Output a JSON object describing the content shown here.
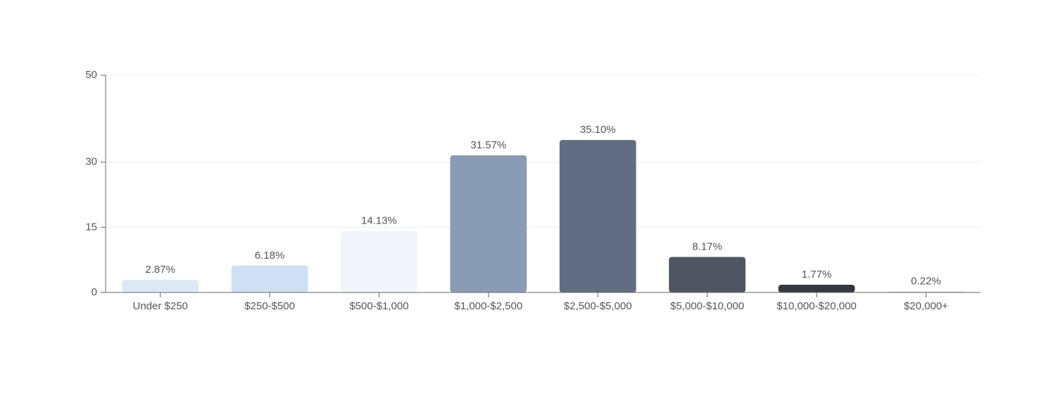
{
  "chart_data": {
    "type": "bar",
    "categories": [
      "Under $250",
      "$250-$500",
      "$500-$1,000",
      "$1,000-$2,500",
      "$2,500-$5,000",
      "$5,000-$10,000",
      "$10,000-$20,000",
      "$20,000+"
    ],
    "values": [
      2.87,
      6.18,
      14.13,
      31.57,
      35.1,
      8.17,
      1.77,
      0.22
    ],
    "value_labels": [
      "2.87%",
      "6.18%",
      "14.13%",
      "31.57%",
      "35.10%",
      "8.17%",
      "1.77%",
      "0.22%"
    ],
    "colors": [
      "#dce8f5",
      "#cfdff4",
      "#f1f5fa",
      "#8a9bb5",
      "#606d82",
      "#4f5661",
      "#333841",
      "#d9dadc"
    ],
    "ylim": [
      0,
      50
    ],
    "yticks": [
      0,
      15,
      30,
      50
    ],
    "grid": true
  }
}
